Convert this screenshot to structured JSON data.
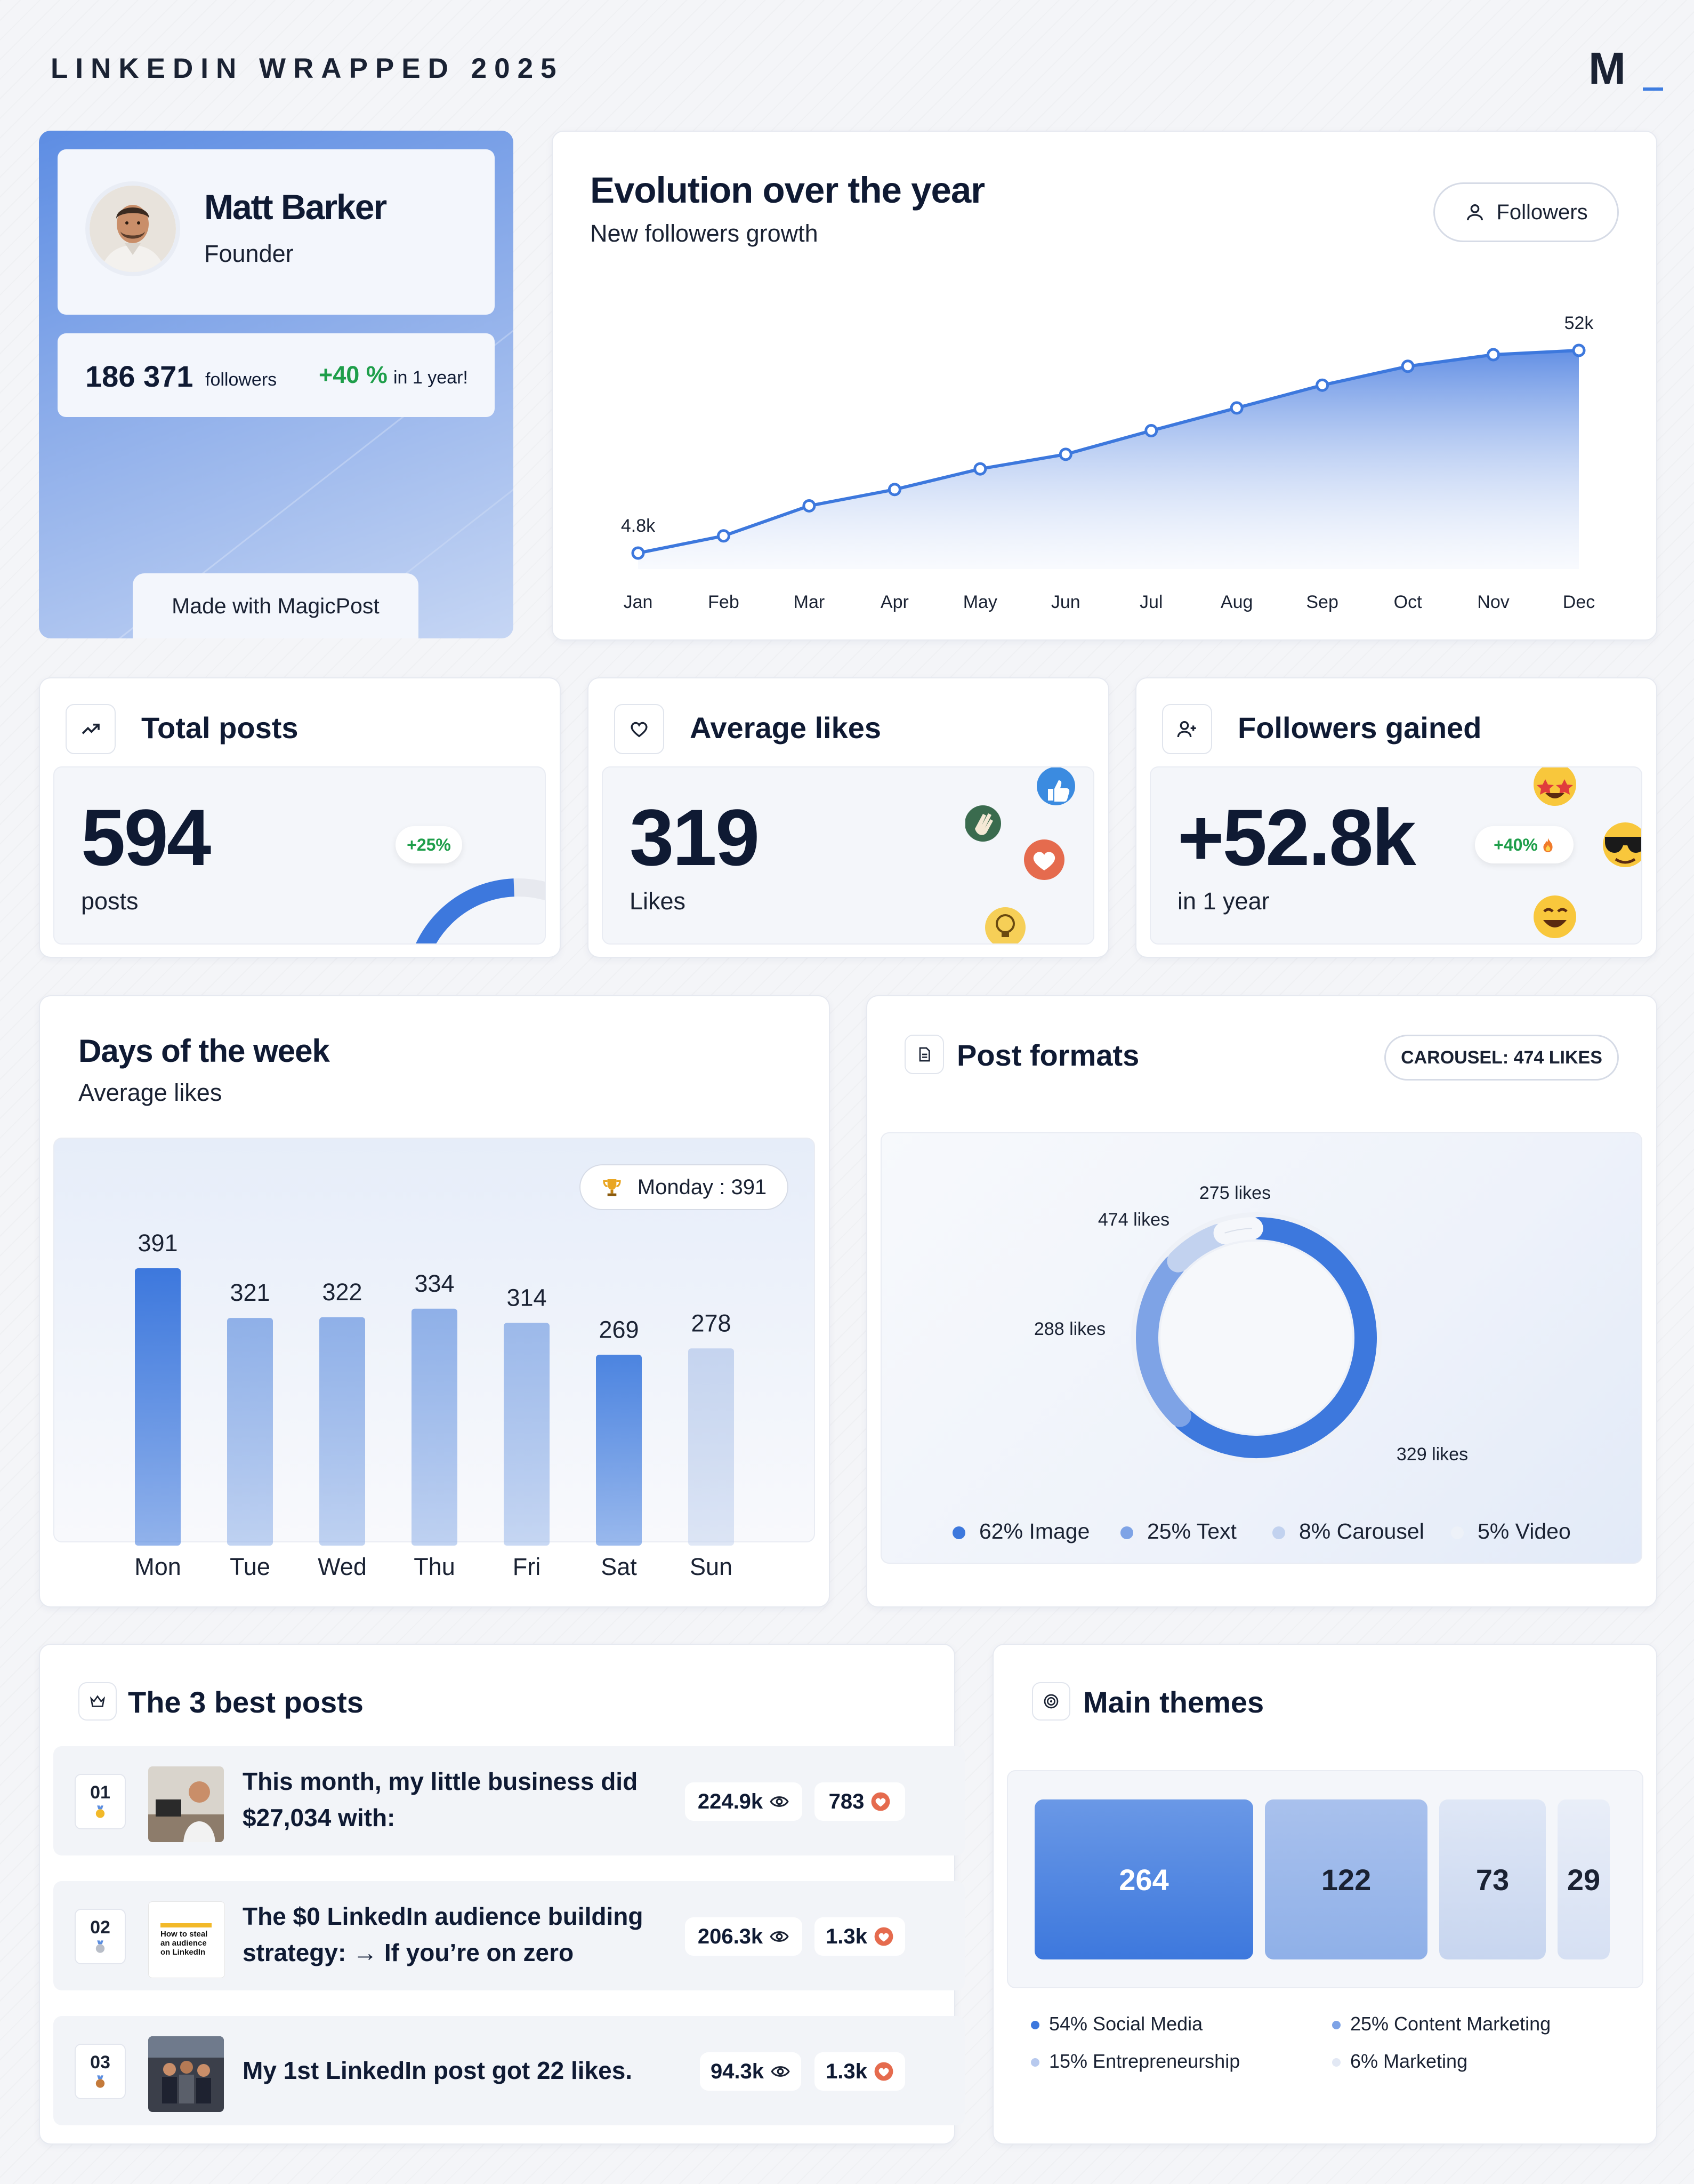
{
  "header": {
    "title": "LINKEDIN WRAPPED 2025",
    "logo_text": "M"
  },
  "profile": {
    "name": "Matt Barker",
    "role": "Founder",
    "followers_count": "186 371",
    "followers_label": "followers",
    "growth": "+40 %",
    "growth_period": "in 1 year!",
    "made_with": "Made with MagicPost"
  },
  "evolution": {
    "title": "Evolution over the year",
    "subtitle": "New followers growth",
    "filter_label": "Followers",
    "chart_data": {
      "type": "area",
      "categories": [
        "Jan",
        "Feb",
        "Mar",
        "Apr",
        "May",
        "Jun",
        "Jul",
        "Aug",
        "Sep",
        "Oct",
        "Nov",
        "Dec"
      ],
      "values": [
        4.8,
        8.8,
        15.8,
        19.6,
        24.4,
        27.8,
        33.3,
        38.6,
        43.9,
        48.3,
        51.0,
        52.0
      ],
      "value_labels": {
        "first": "4.8k",
        "last": "52k"
      },
      "unit": "k",
      "ylim": [
        0,
        60
      ],
      "grid": false,
      "legend": "none"
    }
  },
  "total_posts": {
    "title": "Total posts",
    "value": "594",
    "label": "posts",
    "badge": "+25%",
    "gauge_fraction": 0.25
  },
  "average_likes": {
    "title": "Average likes",
    "value": "319",
    "label": "Likes"
  },
  "followers_gained": {
    "title": "Followers gained",
    "value": "+52.8k",
    "label": "in 1 year",
    "badge": "+40%"
  },
  "days_of_week": {
    "title": "Days of the week",
    "subtitle": "Average likes",
    "best_badge": "Monday : 391",
    "chart_data": {
      "type": "bar",
      "categories": [
        "Mon",
        "Tue",
        "Wed",
        "Thu",
        "Fri",
        "Sat",
        "Sun"
      ],
      "values": [
        391,
        321,
        322,
        334,
        314,
        269,
        278
      ],
      "ylim": [
        0,
        440
      ],
      "grid": false,
      "legend": "none",
      "colors": [
        "#3d78dd",
        "#8fb0e8",
        "#8fb0e8",
        "#8fb0e8",
        "#9cb9ea",
        "#4c84e0",
        "#c5d4ef"
      ]
    }
  },
  "post_formats": {
    "title": "Post formats",
    "badge": "CAROUSEL: 474 LIKES",
    "chart_data": {
      "type": "pie",
      "categories": [
        "Image",
        "Text",
        "Carousel",
        "Video"
      ],
      "values": [
        62,
        25,
        8,
        5
      ],
      "value_labels": [
        "329 likes",
        "288 likes",
        "474 likes",
        "275 likes"
      ],
      "legend_labels": [
        "62% Image",
        "25% Text",
        "8% Carousel",
        "5% Video"
      ],
      "colors": [
        "#3d78dd",
        "#7ea3e6",
        "#c2d2ef",
        "#edf1f8"
      ],
      "legend": "bottom"
    }
  },
  "best_posts": {
    "title": "The 3 best posts",
    "items": [
      {
        "rank": "01",
        "title_line1": "This month, my little business did",
        "title_line2": "$27,034 with:",
        "views": "224.9k",
        "likes": "783"
      },
      {
        "rank": "02",
        "title_line1": "The $0 LinkedIn audience building",
        "title_line2": "strategy: → If you’re on zero",
        "views": "206.3k",
        "likes": "1.3k",
        "thumb_text": "How to steal an audience on LinkedIn"
      },
      {
        "rank": "03",
        "title_line1": "My 1st LinkedIn post got 22 likes.",
        "title_line2": "",
        "views": "94.3k",
        "likes": "1.3k"
      }
    ]
  },
  "themes": {
    "title": "Main themes",
    "values": [
      264,
      122,
      73,
      29
    ],
    "value_labels": [
      "264",
      "122",
      "73",
      "29"
    ],
    "legend": [
      "54% Social Media",
      "25% Content Marketing",
      "15% Entrepreneurship",
      "6% Marketing"
    ],
    "colors": [
      "#3d78dd",
      "#8fb0e8",
      "#c7d5ef",
      "#dfe7f6"
    ]
  }
}
